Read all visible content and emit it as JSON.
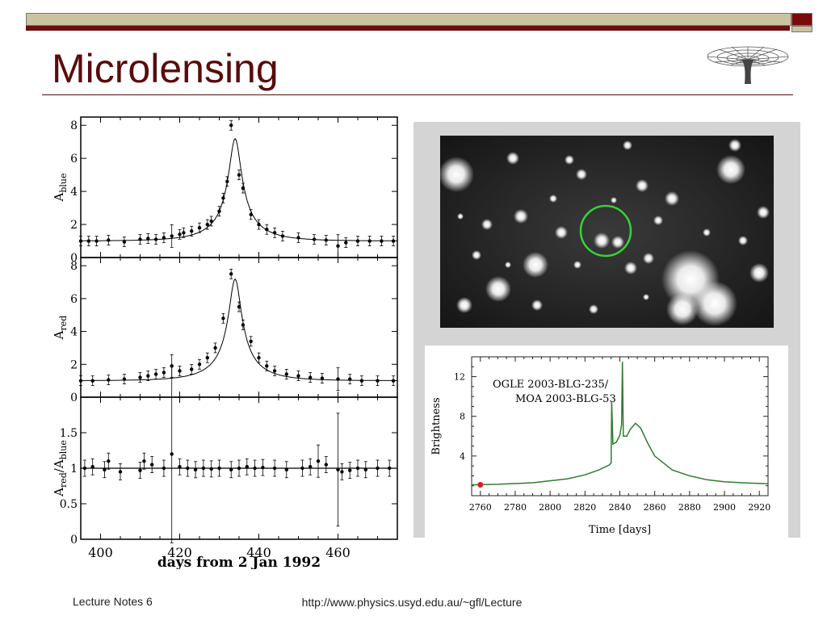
{
  "slide": {
    "title": "Microlensing",
    "footer_left": "Lecture Notes 6",
    "footer_url": "http://www.physics.usyd.edu.au/~gfl/Lecture"
  },
  "colors": {
    "title": "#5a0b0b",
    "bar_light": "#c9c3a1",
    "bar_dark": "#6b0d0d",
    "ring": "#35d435",
    "lightcurve": "#2e7d2e",
    "marker": "#d62020"
  },
  "chart_data": [
    {
      "type": "scatter",
      "panel": "top",
      "ylabel": "A_blue",
      "ylabel_main": "A",
      "ylabel_sub": "blue",
      "xlim": [
        395,
        475
      ],
      "ylim": [
        0,
        8.5
      ],
      "yticks": [
        "0",
        "2",
        "4",
        "6",
        "8"
      ],
      "yticks_values": [
        0,
        2,
        4,
        6,
        8
      ],
      "model": {
        "t0": 434,
        "umin": 0.14,
        "tE": 11.5
      },
      "points": [
        [
          395,
          1.0
        ],
        [
          397,
          1.0
        ],
        [
          399,
          1.0
        ],
        [
          402,
          1.05
        ],
        [
          406,
          0.95
        ],
        [
          410,
          1.1
        ],
        [
          412,
          1.15
        ],
        [
          414,
          1.1
        ],
        [
          416,
          1.2
        ],
        [
          418,
          1.3
        ],
        [
          420,
          1.4
        ],
        [
          421,
          1.5
        ],
        [
          423,
          1.6
        ],
        [
          425,
          1.8
        ],
        [
          427,
          2.0
        ],
        [
          428,
          2.2
        ],
        [
          430,
          2.8
        ],
        [
          431,
          3.6
        ],
        [
          432,
          4.6
        ],
        [
          433,
          8.0
        ],
        [
          435,
          5.0
        ],
        [
          436,
          4.2
        ],
        [
          438,
          2.6
        ],
        [
          440,
          2.0
        ],
        [
          442,
          1.7
        ],
        [
          444,
          1.5
        ],
        [
          446,
          1.3
        ],
        [
          450,
          1.2
        ],
        [
          454,
          1.1
        ],
        [
          457,
          1.05
        ],
        [
          460,
          0.7
        ],
        [
          462,
          0.9
        ],
        [
          465,
          1.0
        ],
        [
          468,
          1.0
        ],
        [
          471,
          1.0
        ],
        [
          474,
          1.0
        ]
      ]
    },
    {
      "type": "scatter",
      "panel": "middle",
      "ylabel": "A_red",
      "ylabel_main": "A",
      "ylabel_sub": "red",
      "xlim": [
        395,
        475
      ],
      "ylim": [
        0,
        8.5
      ],
      "yticks": [
        "0",
        "2",
        "4",
        "6",
        "8"
      ],
      "yticks_values": [
        0,
        2,
        4,
        6,
        8
      ],
      "model": {
        "t0": 434,
        "umin": 0.14,
        "tE": 11.5
      },
      "points": [
        [
          395,
          1.0
        ],
        [
          398,
          1.0
        ],
        [
          402,
          1.05
        ],
        [
          406,
          1.1
        ],
        [
          410,
          1.2
        ],
        [
          412,
          1.3
        ],
        [
          414,
          1.4
        ],
        [
          416,
          1.5
        ],
        [
          418,
          1.9
        ],
        [
          420,
          1.6
        ],
        [
          423,
          1.7
        ],
        [
          425,
          2.0
        ],
        [
          427,
          2.4
        ],
        [
          429,
          3.0
        ],
        [
          431,
          4.8
        ],
        [
          433,
          7.5
        ],
        [
          435,
          5.5
        ],
        [
          436,
          4.4
        ],
        [
          438,
          3.4
        ],
        [
          440,
          2.4
        ],
        [
          442,
          1.9
        ],
        [
          444,
          1.6
        ],
        [
          447,
          1.4
        ],
        [
          450,
          1.3
        ],
        [
          453,
          1.2
        ],
        [
          456,
          1.15
        ],
        [
          460,
          1.1
        ],
        [
          463,
          1.1
        ],
        [
          466,
          1.0
        ],
        [
          470,
          1.0
        ],
        [
          474,
          1.0
        ]
      ]
    },
    {
      "type": "scatter",
      "panel": "bottom",
      "ylabel": "A_red/A_blue",
      "ylabel_main": "A",
      "ylabel_sub": "red",
      "ylabel_main2": "/A",
      "ylabel_sub2": "blue",
      "xlabel": "days from 2 Jan 1992",
      "xlim": [
        395,
        475
      ],
      "ylim": [
        0,
        2
      ],
      "yticks": [
        "0",
        "0.5",
        "1",
        "1.5"
      ],
      "yticks_values": [
        0,
        0.5,
        1,
        1.5
      ],
      "xticks": [
        "400",
        "420",
        "440",
        "460"
      ],
      "xticks_values": [
        400,
        420,
        440,
        460
      ],
      "reference_line": 1,
      "points": [
        [
          396,
          1.0
        ],
        [
          398,
          1.02
        ],
        [
          401,
          0.98
        ],
        [
          402,
          1.1
        ],
        [
          405,
          0.95
        ],
        [
          410,
          0.97
        ],
        [
          411,
          1.1
        ],
        [
          413,
          1.05
        ],
        [
          416,
          1.0
        ],
        [
          418,
          1.2
        ],
        [
          420,
          1.02
        ],
        [
          422,
          1.0
        ],
        [
          424,
          0.98
        ],
        [
          426,
          1.0
        ],
        [
          428,
          0.99
        ],
        [
          430,
          1.0
        ],
        [
          433,
          0.98
        ],
        [
          435,
          1.0
        ],
        [
          437,
          1.02
        ],
        [
          439,
          1.0
        ],
        [
          441,
          1.01
        ],
        [
          444,
          1.0
        ],
        [
          447,
          0.98
        ],
        [
          451,
          1.0
        ],
        [
          453,
          1.02
        ],
        [
          455,
          1.1
        ],
        [
          457,
          1.05
        ],
        [
          460,
          0.98
        ],
        [
          461,
          0.95
        ],
        [
          463,
          0.97
        ],
        [
          465,
          1.0
        ],
        [
          467,
          0.98
        ],
        [
          470,
          1.0
        ],
        [
          473,
          1.0
        ]
      ]
    },
    {
      "type": "line",
      "panel": "lightcurve",
      "title_lines": [
        "OGLE 2003-BLG-235/",
        "MOA 2003-BLG-53"
      ],
      "xlabel": "Time [days]",
      "ylabel": "Brightness",
      "xlim": [
        2755,
        2925
      ],
      "ylim": [
        0,
        14
      ],
      "xticks": [
        "2760",
        "2780",
        "2800",
        "2820",
        "2840",
        "2860",
        "2880",
        "2900",
        "2920"
      ],
      "xticks_values": [
        2760,
        2780,
        2800,
        2820,
        2840,
        2860,
        2880,
        2900,
        2920
      ],
      "yticks": [
        "4",
        "8",
        "12"
      ],
      "yticks_values": [
        4,
        8,
        12
      ],
      "marker_point": [
        2760,
        1.1
      ],
      "series": [
        {
          "values": [
            [
              2755,
              1.1
            ],
            [
              2770,
              1.15
            ],
            [
              2790,
              1.3
            ],
            [
              2810,
              1.7
            ],
            [
              2820,
              2.1
            ],
            [
              2828,
              2.6
            ],
            [
              2834,
              3.1
            ],
            [
              2835,
              3.3
            ],
            [
              2835.3,
              9.5
            ],
            [
              2836,
              5.2
            ],
            [
              2838,
              5.4
            ],
            [
              2840,
              6.1
            ],
            [
              2841,
              7.2
            ],
            [
              2841.5,
              13.5
            ],
            [
              2842,
              6.0
            ],
            [
              2844,
              6.0
            ],
            [
              2846,
              6.7
            ],
            [
              2849,
              7.3
            ],
            [
              2852,
              6.8
            ],
            [
              2856,
              5.3
            ],
            [
              2860,
              4.0
            ],
            [
              2870,
              2.6
            ],
            [
              2880,
              2.0
            ],
            [
              2890,
              1.6
            ],
            [
              2900,
              1.4
            ],
            [
              2910,
              1.3
            ],
            [
              2925,
              1.2
            ]
          ]
        }
      ]
    }
  ]
}
